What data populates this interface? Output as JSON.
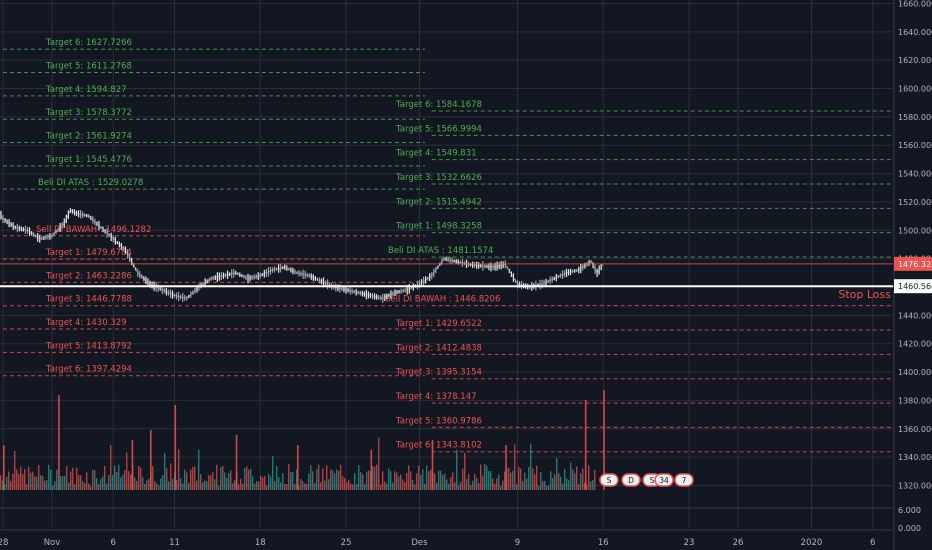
{
  "chart_data": {
    "type": "line",
    "y_axis": {
      "scale": "linear",
      "ylim": [
        1308,
        1662
      ],
      "ticks": [
        1320,
        1340,
        1360,
        1380,
        1400,
        1420,
        1440,
        1460,
        1480,
        1500,
        1520,
        1540,
        1560,
        1580,
        1600,
        1620,
        1640,
        1660
      ],
      "tick_labels": [
        "1320.000",
        "1340.000",
        "1360.000",
        "1380.000",
        "1400.000",
        "1420.000",
        "1440.000",
        "1460.000",
        "1480.000",
        "1500.000",
        "1520.000",
        "1540.000",
        "1560.000",
        "1580.000",
        "1600.000",
        "1620.000",
        "1640.000",
        "1660.000"
      ],
      "current_price": "1476.328",
      "stop_loss_price": "1460.566"
    },
    "volume_axis": {
      "ticks": [
        "6.000",
        "0.000"
      ]
    },
    "x_axis": {
      "ticks": [
        {
          "label": "28",
          "day": 0
        },
        {
          "label": "Nov",
          "day": 4
        },
        {
          "label": "6",
          "day": 9
        },
        {
          "label": "11",
          "day": 14
        },
        {
          "label": "18",
          "day": 21
        },
        {
          "label": "25",
          "day": 28
        },
        {
          "label": "Des",
          "day": 34
        },
        {
          "label": "9",
          "day": 42
        },
        {
          "label": "16",
          "day": 49
        },
        {
          "label": "23",
          "day": 56
        },
        {
          "label": "26",
          "day": 60
        },
        {
          "label": "2020",
          "day": 66
        },
        {
          "label": "6",
          "day": 71
        }
      ]
    },
    "stop_loss_label": "Stop Loss",
    "level_groups": [
      {
        "start_day": 0,
        "end_day": 35,
        "buy_targets": [
          {
            "label": "Target 6: 1627.7266",
            "value": 1627.7266
          },
          {
            "label": "Target 5: 1611.2768",
            "value": 1611.2768
          },
          {
            "label": "Target 4: 1594.827",
            "value": 1594.827
          },
          {
            "label": "Target 3: 1578.3772",
            "value": 1578.3772
          },
          {
            "label": "Target 2: 1561.9274",
            "value": 1561.9274
          },
          {
            "label": "Target 1: 1545.4776",
            "value": 1545.4776
          },
          {
            "label": "Beli DI ATAS : 1529.0278",
            "value": 1529.0278
          }
        ],
        "sell_targets": [
          {
            "label": "Sell DI BAWAH : 1496.1282",
            "value": 1496.1282
          },
          {
            "label": "Target 1: 1479.6784",
            "value": 1479.6784
          },
          {
            "label": "Target 2: 1463.2286",
            "value": 1463.2286
          },
          {
            "label": "Target 3: 1446.7788",
            "value": 1446.7788
          },
          {
            "label": "Target 4: 1430.329",
            "value": 1430.329
          },
          {
            "label": "Target 5: 1413.8792",
            "value": 1413.8792
          },
          {
            "label": "Target 6: 1397.4294",
            "value": 1397.4294
          }
        ]
      },
      {
        "start_day": 35,
        "end_day": 72,
        "buy_targets": [
          {
            "label": "Target 6: 1584.1678",
            "value": 1584.1678
          },
          {
            "label": "Target 5: 1566.9994",
            "value": 1566.9994
          },
          {
            "label": "Target 4: 1549.831",
            "value": 1549.831
          },
          {
            "label": "Target 3: 1532.6626",
            "value": 1532.6626
          },
          {
            "label": "Target 2: 1515.4942",
            "value": 1515.4942
          },
          {
            "label": "Target 1: 1498.3258",
            "value": 1498.3258
          },
          {
            "label": "Beli DI ATAS : 1481.1574",
            "value": 1481.1574
          }
        ],
        "sell_targets": [
          {
            "label": "Sell DI BAWAH : 1446.8206",
            "value": 1446.8206
          },
          {
            "label": "Target 1: 1429.6522",
            "value": 1429.6522
          },
          {
            "label": "Target 2: 1412.4838",
            "value": 1412.4838
          },
          {
            "label": "Target 3: 1395.3154",
            "value": 1395.3154
          },
          {
            "label": "Target 4: 1378.147",
            "value": 1378.147
          },
          {
            "label": "Target 5: 1360.9786",
            "value": 1360.9786
          },
          {
            "label": "Target 6: 1343.8102",
            "value": 1343.8102
          }
        ]
      }
    ],
    "price_series": [
      [
        -0.5,
        1516
      ],
      [
        0,
        1508
      ],
      [
        1,
        1502
      ],
      [
        2,
        1500
      ],
      [
        3,
        1494
      ],
      [
        4,
        1496
      ],
      [
        5,
        1505
      ],
      [
        5.5,
        1514
      ],
      [
        6,
        1512
      ],
      [
        7,
        1510
      ],
      [
        8,
        1502
      ],
      [
        9,
        1494
      ],
      [
        10,
        1486
      ],
      [
        11,
        1470
      ],
      [
        12,
        1462
      ],
      [
        13,
        1458
      ],
      [
        14,
        1454
      ],
      [
        15,
        1452
      ],
      [
        16,
        1460
      ],
      [
        17,
        1466
      ],
      [
        18,
        1468
      ],
      [
        19,
        1470
      ],
      [
        20,
        1466
      ],
      [
        21,
        1468
      ],
      [
        22,
        1472
      ],
      [
        23,
        1474
      ],
      [
        24,
        1470
      ],
      [
        25,
        1468
      ],
      [
        26,
        1464
      ],
      [
        27,
        1460
      ],
      [
        28,
        1458
      ],
      [
        29,
        1456
      ],
      [
        30,
        1454
      ],
      [
        31,
        1452
      ],
      [
        32,
        1456
      ],
      [
        33,
        1458
      ],
      [
        34,
        1462
      ],
      [
        35,
        1468
      ],
      [
        36,
        1480
      ],
      [
        37,
        1478
      ],
      [
        38,
        1476
      ],
      [
        39,
        1475
      ],
      [
        40,
        1474
      ],
      [
        41,
        1476
      ],
      [
        42,
        1462
      ],
      [
        43,
        1460
      ],
      [
        44,
        1462
      ],
      [
        45,
        1466
      ],
      [
        46,
        1470
      ],
      [
        47,
        1472
      ],
      [
        48,
        1478
      ],
      [
        48.5,
        1470
      ],
      [
        49,
        1476
      ]
    ],
    "volume_spikes": [
      {
        "day": 0,
        "height": 0.45
      },
      {
        "day": 4.5,
        "height": 0.95
      },
      {
        "day": 10.5,
        "height": 0.5
      },
      {
        "day": 12,
        "height": 0.6
      },
      {
        "day": 14,
        "height": 0.85
      },
      {
        "day": 19,
        "height": 0.55
      },
      {
        "day": 24,
        "height": 0.45
      },
      {
        "day": 30,
        "height": 0.4
      },
      {
        "day": 35,
        "height": 0.5
      },
      {
        "day": 41,
        "height": 0.45
      },
      {
        "day": 47.5,
        "height": 0.9
      },
      {
        "day": 49,
        "height": 1.0
      }
    ],
    "event_badges": [
      "S",
      "D",
      "S",
      "34",
      "7"
    ]
  },
  "colors": {
    "background": "#131722",
    "grid": "#2a2e39",
    "axis_text": "#b2b5be",
    "buy": "#4caf50",
    "sell": "#ef5350",
    "price_line": "#c8cbd2",
    "current_tag": "#ef5350",
    "stop_loss": "#ffffff",
    "volume_up": "#26a69a",
    "volume_down": "#ef5350"
  }
}
